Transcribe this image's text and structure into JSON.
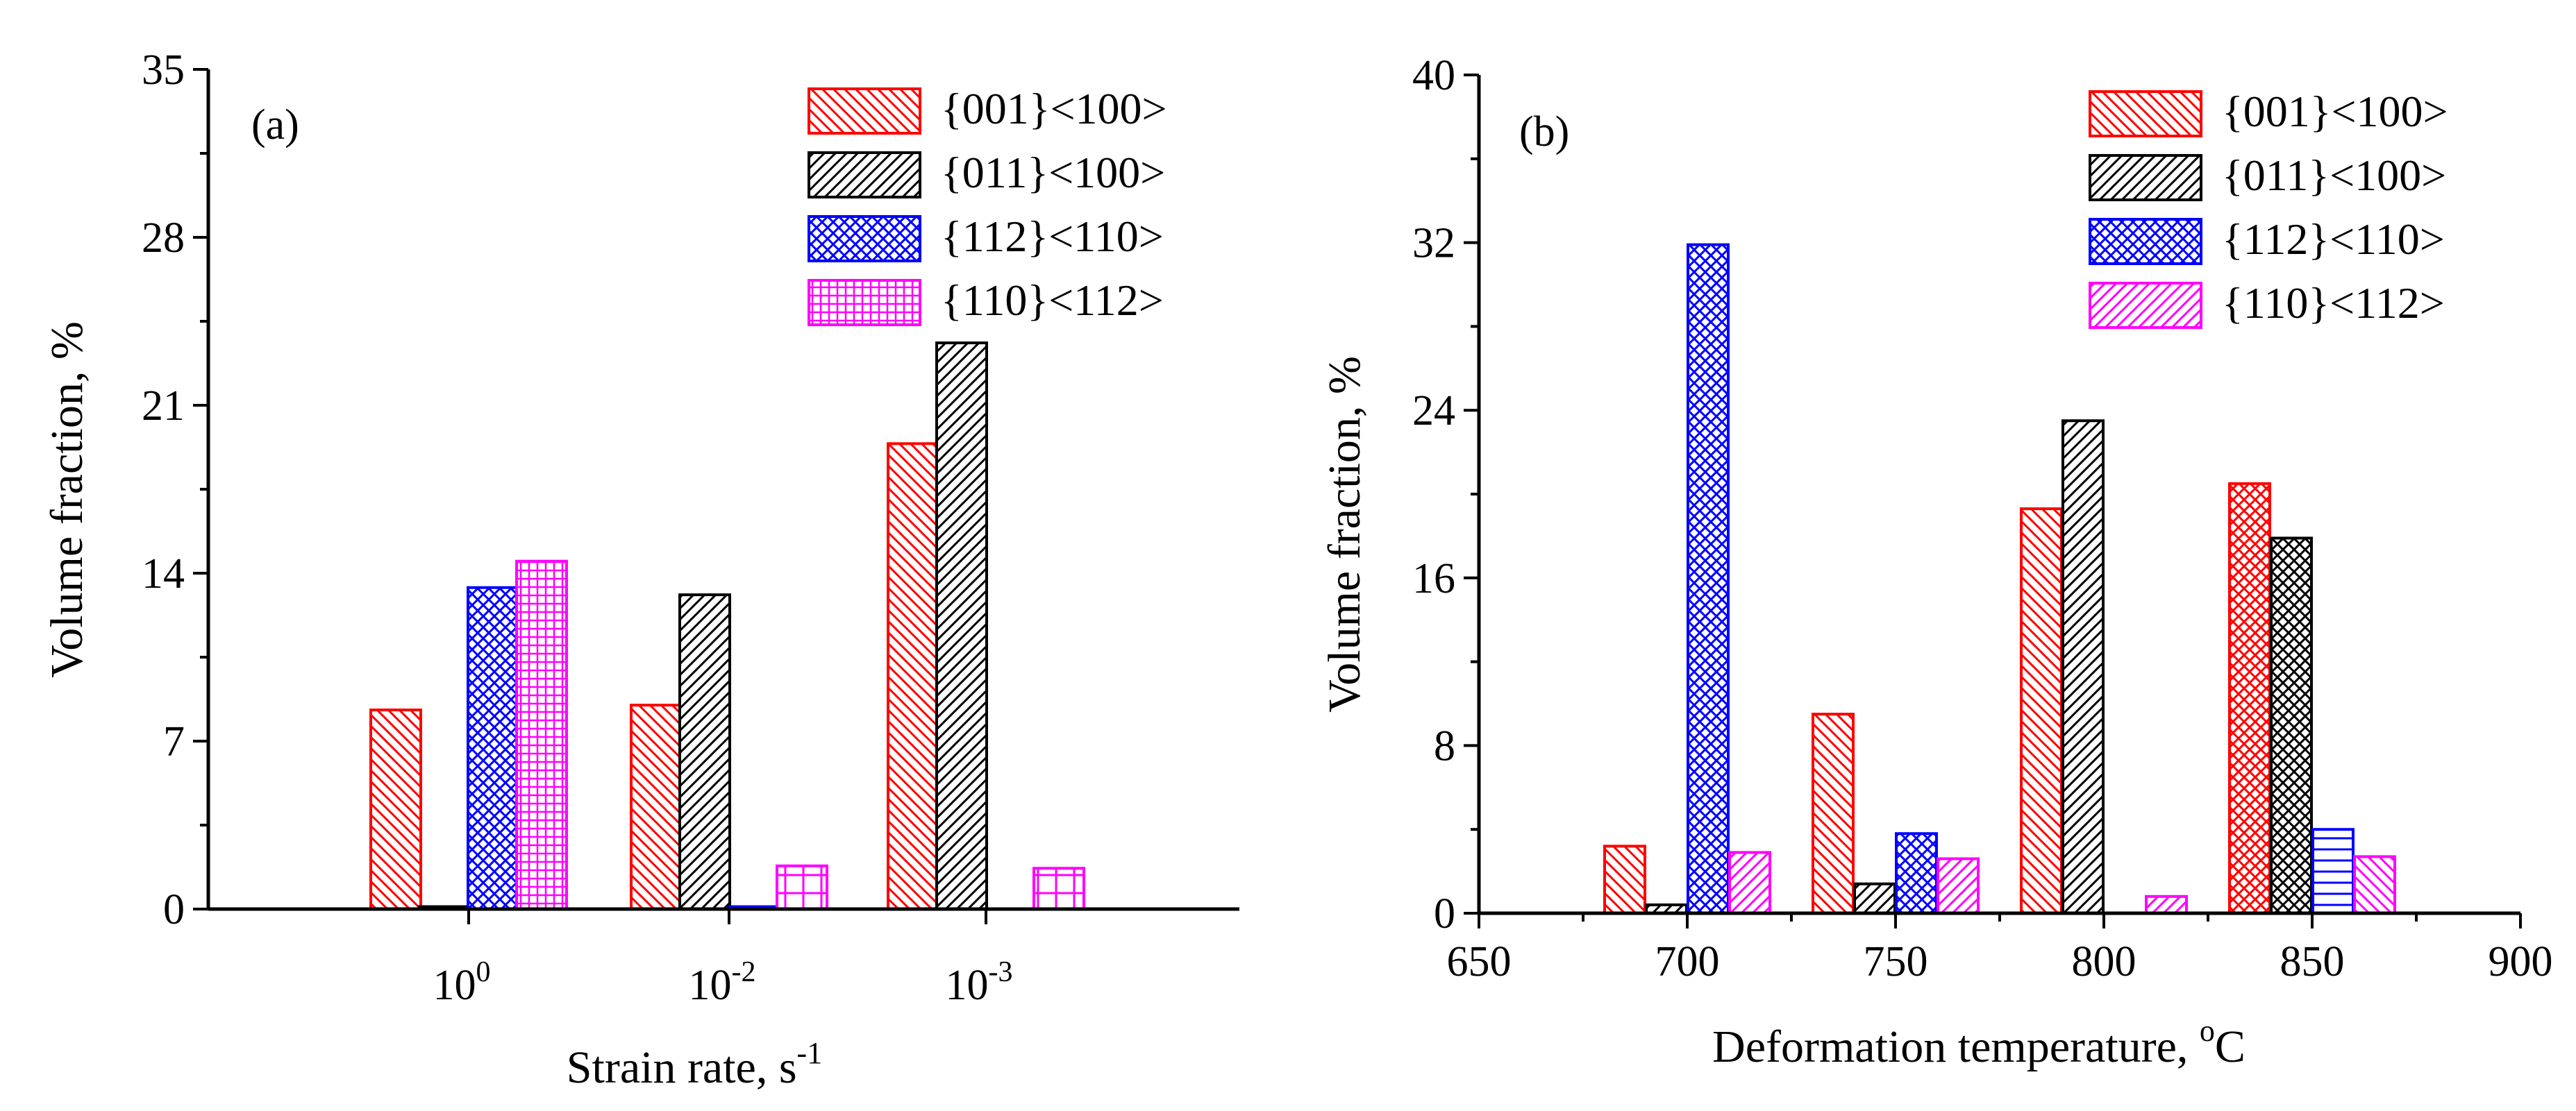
{
  "chart_data": [
    {
      "type": "bar",
      "panel_label": "(a)",
      "xlabel": "Strain rate, s",
      "xlabel_sup": "-1",
      "ylabel": "Volume fraction, %",
      "ylim": [
        0,
        35
      ],
      "yticks": [
        "0",
        "7",
        "14",
        "21",
        "28",
        "35"
      ],
      "categories": [
        {
          "base": "10",
          "exp": "0"
        },
        {
          "base": "10",
          "exp": "-2"
        },
        {
          "base": "10",
          "exp": "-3"
        }
      ],
      "legend_position": "top-right",
      "series": [
        {
          "name": "{001}<100>",
          "color": "#ff0000",
          "pattern": "hatch-back",
          "values": [
            8.3,
            8.5,
            19.4
          ]
        },
        {
          "name": "{011}<100>",
          "color": "#000000",
          "pattern": "hatch-fwd",
          "values": [
            0.1,
            13.1,
            23.6
          ]
        },
        {
          "name": "{112}<110>",
          "color": "#0000ff",
          "pattern": "crosshatch",
          "values": [
            13.4,
            0.1,
            0
          ]
        },
        {
          "name": "{110}<112>",
          "color": "#ff00ff",
          "pattern": "grid-fine",
          "values": [
            14.5,
            1.8,
            1.7
          ]
        }
      ]
    },
    {
      "type": "bar",
      "panel_label": "(b)",
      "xlabel": "Deformation temperature, ",
      "xlabel_sup": "o",
      "xlabel_tail": "C",
      "ylabel": "Volume fraction, %",
      "ylim": [
        0,
        40
      ],
      "yticks": [
        "0",
        "8",
        "16",
        "24",
        "32",
        "40"
      ],
      "xlim": [
        650,
        900
      ],
      "xticks": [
        "650",
        "700",
        "750",
        "800",
        "850",
        "900"
      ],
      "categories": [
        700,
        750,
        800,
        850
      ],
      "legend_position": "top-right",
      "series": [
        {
          "name": "{001}<100>",
          "color": "#ff0000",
          "pattern": "hatch-back",
          "values": [
            3.2,
            9.5,
            19.3,
            20.5
          ]
        },
        {
          "name": "{011}<100>",
          "color": "#000000",
          "pattern": "hatch-fwd",
          "values": [
            0.4,
            1.4,
            23.5,
            17.9
          ]
        },
        {
          "name": "{112}<110>",
          "color": "#0000ff",
          "pattern": "crosshatch",
          "values": [
            31.9,
            3.8,
            0,
            4.0
          ]
        },
        {
          "name": "{110}<112>",
          "color": "#ff00ff",
          "pattern": "hatch-fwd",
          "values": [
            2.9,
            2.6,
            0.8,
            2.7
          ]
        }
      ],
      "overrides": [
        {
          "series": 0,
          "index": 3,
          "pattern": "crosshatch"
        },
        {
          "series": 1,
          "index": 3,
          "pattern": "crosshatch-diag"
        },
        {
          "series": 2,
          "index": 3,
          "pattern": "horizontal"
        },
        {
          "series": 3,
          "index": 3,
          "pattern": "hatch-back"
        }
      ]
    }
  ]
}
